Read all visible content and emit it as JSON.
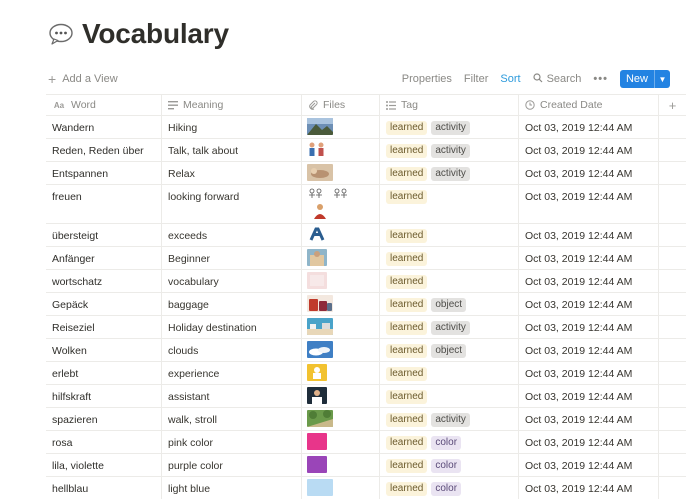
{
  "page": {
    "title": "Vocabulary",
    "title_icon": "speech-bubble-icon"
  },
  "toolbar": {
    "add_view": "Add a View",
    "properties": "Properties",
    "filter": "Filter",
    "sort": "Sort",
    "search": "Search",
    "more": "•••",
    "new": "New"
  },
  "columns": {
    "word": "Word",
    "meaning": "Meaning",
    "files": "Files",
    "tag": "Tag",
    "created": "Created Date",
    "add": "+"
  },
  "colors": {
    "accent": "#2383e2",
    "sort": "#2e9bdc",
    "tag_learned": "#fbf3db",
    "tag_gray": "#e3e2e0",
    "tag_purple": "#eae4f2"
  },
  "rows": [
    {
      "word": "Wandern",
      "meaning": "Hiking",
      "tags": [
        "learned",
        "activity"
      ],
      "date": "Oct 03, 2019 12:44 AM"
    },
    {
      "word": "Reden, Reden über",
      "meaning": "Talk, talk about",
      "tags": [
        "learned",
        "activity"
      ],
      "date": "Oct 03, 2019 12:44 AM"
    },
    {
      "word": "Entspannen",
      "meaning": "Relax",
      "tags": [
        "learned",
        "activity"
      ],
      "date": "Oct 03, 2019 12:44 AM"
    },
    {
      "word": "freuen",
      "meaning": "looking forward",
      "tags": [
        "learned"
      ],
      "date": "Oct 03, 2019 12:44 AM"
    },
    {
      "word": "übersteigt",
      "meaning": "exceeds",
      "tags": [
        "learned"
      ],
      "date": "Oct 03, 2019 12:44 AM"
    },
    {
      "word": "Anfänger",
      "meaning": "Beginner",
      "tags": [
        "learned"
      ],
      "date": "Oct 03, 2019 12:44 AM"
    },
    {
      "word": "wortschatz",
      "meaning": "vocabulary",
      "tags": [
        "learned"
      ],
      "date": "Oct 03, 2019 12:44 AM"
    },
    {
      "word": "Gepäck",
      "meaning": "baggage",
      "tags": [
        "learned",
        "object"
      ],
      "date": "Oct 03, 2019 12:44 AM"
    },
    {
      "word": "Reiseziel",
      "meaning": "Holiday destination",
      "tags": [
        "learned",
        "activity"
      ],
      "date": "Oct 03, 2019 12:44 AM"
    },
    {
      "word": "Wolken",
      "meaning": "clouds",
      "tags": [
        "learned",
        "object"
      ],
      "date": "Oct 03, 2019 12:44 AM"
    },
    {
      "word": "erlebt",
      "meaning": "experience",
      "tags": [
        "learned"
      ],
      "date": "Oct 03, 2019 12:44 AM"
    },
    {
      "word": "hilfskraft",
      "meaning": "assistant",
      "tags": [
        "learned"
      ],
      "date": "Oct 03, 2019 12:44 AM"
    },
    {
      "word": "spazieren",
      "meaning": "walk, stroll",
      "tags": [
        "learned",
        "activity"
      ],
      "date": "Oct 03, 2019 12:44 AM"
    },
    {
      "word": "rosa",
      "meaning": "pink color",
      "tags": [
        "learned",
        "color"
      ],
      "date": "Oct 03, 2019 12:44 AM"
    },
    {
      "word": "lila, violette",
      "meaning": "purple color",
      "tags": [
        "learned",
        "color"
      ],
      "date": "Oct 03, 2019 12:44 AM"
    },
    {
      "word": "hellblau",
      "meaning": "light blue",
      "tags": [
        "learned",
        "color"
      ],
      "date": "Oct 03, 2019 12:44 AM"
    }
  ]
}
